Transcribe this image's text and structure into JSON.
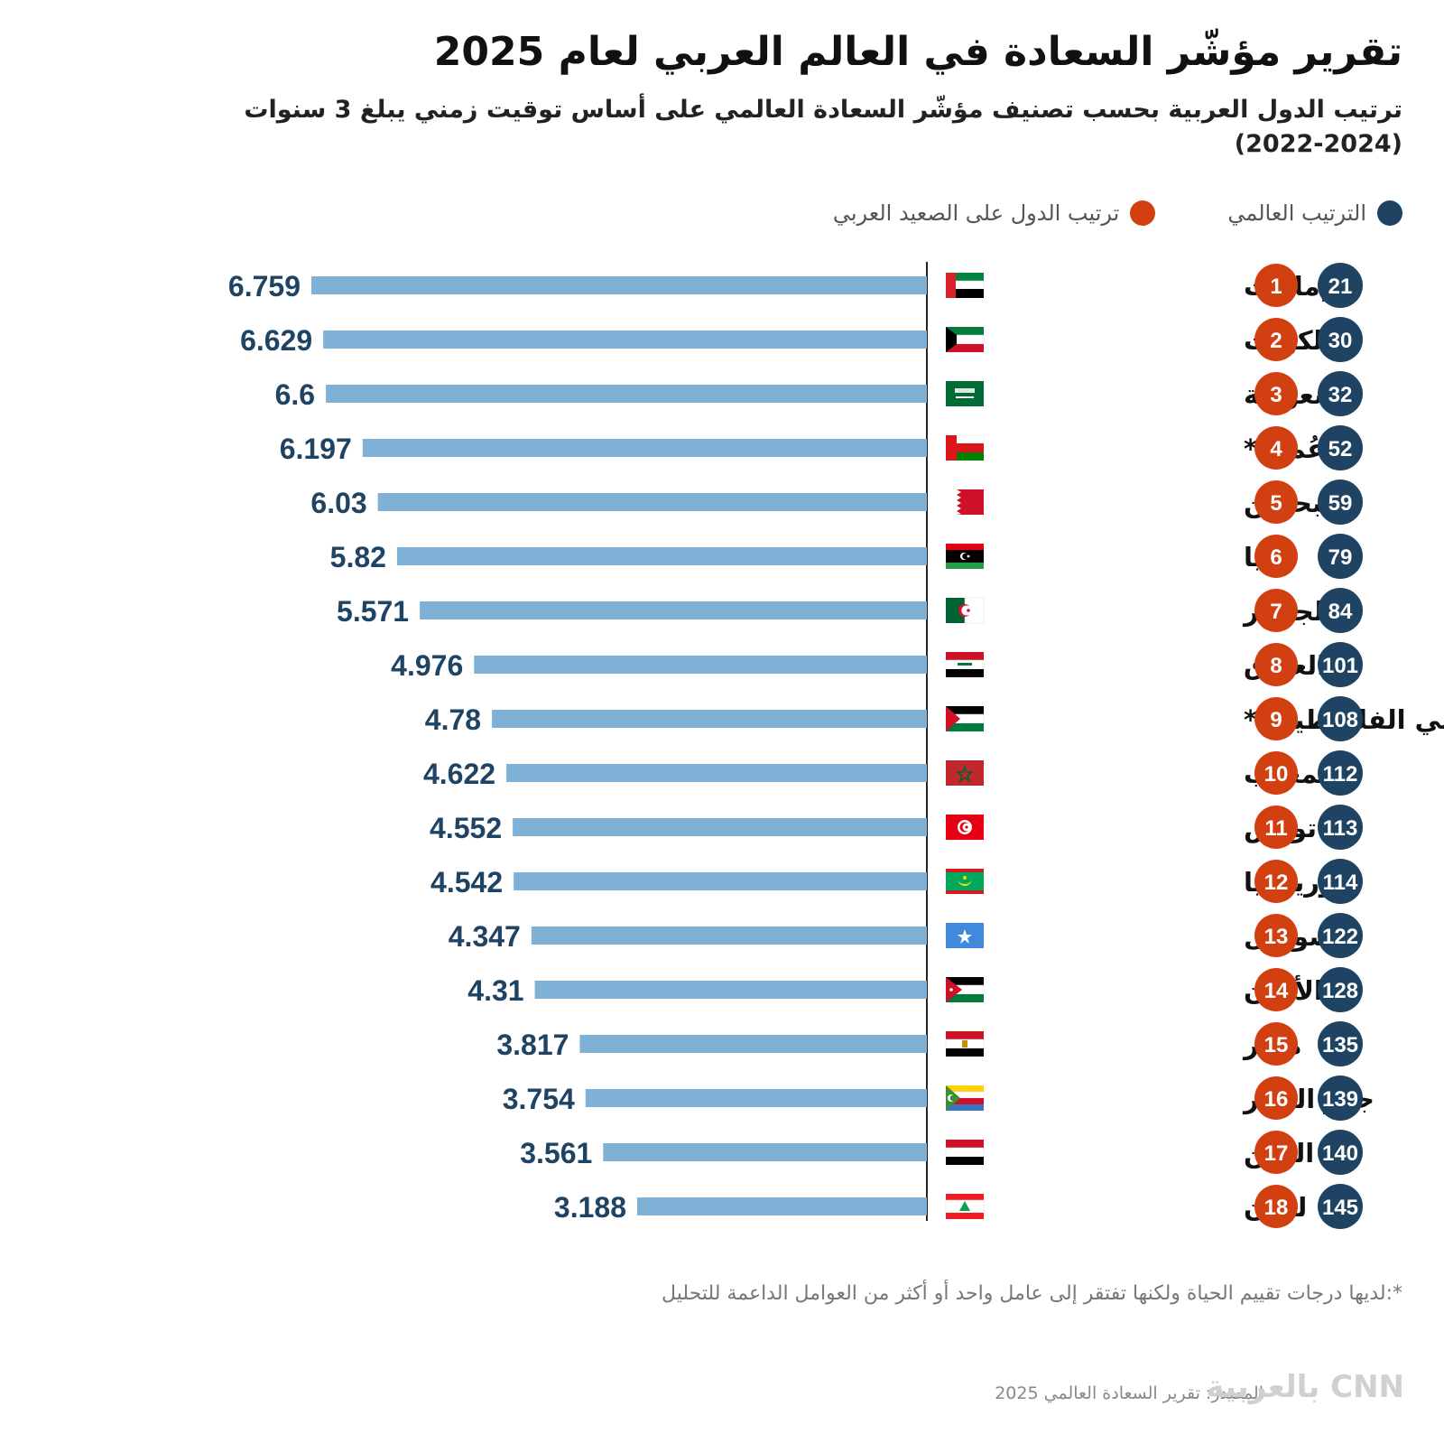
{
  "title": "تقرير مؤشّر السعادة في العالم العربي لعام 2025",
  "subtitle": "ترتيب الدول العربية بحسب تصنيف مؤشّر السعادة العالمي على أساس توقيت زمني يبلغ 3 سنوات (2024-2022)",
  "legend": {
    "world_label": "الترتيب العالمي",
    "arab_label": "ترتيب الدول على الصعيد العربي"
  },
  "colors": {
    "bar": "#7fb1d6",
    "value_text": "#1f4363",
    "world_circle": "#1f4363",
    "arab_circle": "#d23f10",
    "axis": "#222222"
  },
  "chart_data": {
    "type": "bar",
    "orientation": "horizontal",
    "grid": false,
    "xlim": [
      0,
      7
    ],
    "categories": [
      "الإمارات",
      "الكويت",
      "السعودية",
      "عُمان*",
      "البحرين",
      "ليبيا",
      "الجزائر",
      "العراق",
      "الأراضي الفلسطينية*",
      "المغرب",
      "تونس",
      "موريتانيا",
      "الصومال",
      "الأردن",
      "مصر",
      "جزر القمر",
      "اليمن",
      "لبنان"
    ],
    "values": [
      6.759,
      6.629,
      6.6,
      6.197,
      6.03,
      5.82,
      5.571,
      4.976,
      4.78,
      4.622,
      4.552,
      4.542,
      4.347,
      4.31,
      3.817,
      3.754,
      3.561,
      3.188
    ],
    "value_labels": [
      "6.759",
      "6.629",
      "6.6",
      "6.197",
      "6.03",
      "5.82",
      "5.571",
      "4.976",
      "4.78",
      "4.622",
      "4.552",
      "4.542",
      "4.347",
      "4.31",
      "3.817",
      "3.754",
      "3.561",
      "3.188"
    ],
    "arab_rank": [
      "1",
      "2",
      "3",
      "4",
      "5",
      "6",
      "7",
      "8",
      "9",
      "10",
      "11",
      "12",
      "13",
      "14",
      "15",
      "16",
      "17",
      "18"
    ],
    "world_rank": [
      "21",
      "30",
      "32",
      "52",
      "59",
      "79",
      "84",
      "101",
      "108",
      "112",
      "113",
      "114",
      "122",
      "128",
      "135",
      "139",
      "140",
      "145"
    ],
    "flags": [
      "uae",
      "kuwait",
      "saudi",
      "oman",
      "bahrain",
      "libya",
      "algeria",
      "iraq",
      "palestine",
      "morocco",
      "tunisia",
      "mauritania",
      "somalia",
      "jordan",
      "egypt",
      "comoros",
      "yemen",
      "lebanon"
    ]
  },
  "footnote": "*:لديها درجات تقييم الحياة ولكنها تفتقر إلى عامل واحد أو أكثر من العوامل الداعمة للتحليل",
  "source": "المصدر: تقرير السعادة العالمي 2025",
  "logo_text": "CNN بالعربية"
}
